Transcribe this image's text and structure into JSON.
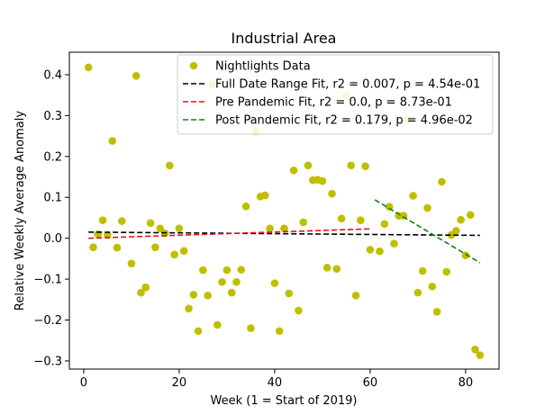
{
  "chart_data": {
    "type": "scatter",
    "title": "Industrial Area",
    "xlabel": "Week (1 = Start of 2019)",
    "ylabel": "Relative Weekly Average Anomaly",
    "xlim": [
      -3,
      87
    ],
    "ylim": [
      -0.32,
      0.455
    ],
    "xticks": [
      0,
      20,
      40,
      60,
      80
    ],
    "yticks": [
      -0.3,
      -0.2,
      -0.1,
      0.0,
      0.1,
      0.2,
      0.3,
      0.4
    ],
    "ytick_labels": [
      "−0.3",
      "−0.2",
      "−0.1",
      "0.0",
      "0.1",
      "0.2",
      "0.3",
      "0.4"
    ],
    "legend_position": "top-right",
    "series": [
      {
        "name": "Nightlights Data",
        "kind": "points",
        "color": "#bfbf00",
        "points": [
          [
            1,
            0.418
          ],
          [
            2,
            -0.022
          ],
          [
            3,
            0.01
          ],
          [
            4,
            0.044
          ],
          [
            5,
            0.008
          ],
          [
            6,
            0.238
          ],
          [
            7,
            -0.023
          ],
          [
            8,
            0.042
          ],
          [
            10,
            -0.062
          ],
          [
            11,
            0.397
          ],
          [
            12,
            -0.133
          ],
          [
            13,
            -0.12
          ],
          [
            14,
            0.037
          ],
          [
            15,
            -0.022
          ],
          [
            16,
            0.024
          ],
          [
            17,
            0.012
          ],
          [
            18,
            0.178
          ],
          [
            19,
            -0.04
          ],
          [
            20,
            0.024
          ],
          [
            21,
            -0.031
          ],
          [
            22,
            -0.172
          ],
          [
            23,
            -0.138
          ],
          [
            24,
            -0.227
          ],
          [
            25,
            -0.078
          ],
          [
            26,
            -0.14
          ],
          [
            27,
            0.375
          ],
          [
            28,
            -0.212
          ],
          [
            29,
            -0.107
          ],
          [
            30,
            -0.078
          ],
          [
            31,
            -0.133
          ],
          [
            32,
            -0.107
          ],
          [
            33,
            -0.077
          ],
          [
            34,
            0.078
          ],
          [
            35,
            -0.22
          ],
          [
            36,
            0.262
          ],
          [
            37,
            0.102
          ],
          [
            38,
            0.105
          ],
          [
            39,
            0.024
          ],
          [
            40,
            -0.11
          ],
          [
            41,
            -0.227
          ],
          [
            42,
            0.024
          ],
          [
            43,
            -0.135
          ],
          [
            44,
            0.166
          ],
          [
            45,
            -0.177
          ],
          [
            46,
            0.039
          ],
          [
            47,
            0.178
          ],
          [
            48,
            0.142
          ],
          [
            49,
            0.143
          ],
          [
            50,
            0.14
          ],
          [
            51,
            -0.072
          ],
          [
            52,
            0.109
          ],
          [
            53,
            -0.075
          ],
          [
            54,
            0.048
          ],
          [
            55,
            0.349
          ],
          [
            56,
            0.178
          ],
          [
            57,
            -0.14
          ],
          [
            58,
            0.044
          ],
          [
            59,
            0.176
          ],
          [
            60,
            -0.028
          ],
          [
            62,
            -0.032
          ],
          [
            63,
            0.035
          ],
          [
            64,
            0.077
          ],
          [
            65,
            -0.013
          ],
          [
            66,
            0.055
          ],
          [
            67,
            0.055
          ],
          [
            68,
            0.29
          ],
          [
            69,
            0.104
          ],
          [
            70,
            -0.133
          ],
          [
            71,
            -0.08
          ],
          [
            72,
            0.074
          ],
          [
            73,
            -0.118
          ],
          [
            74,
            -0.18
          ],
          [
            75,
            0.138
          ],
          [
            76,
            -0.082
          ],
          [
            77,
            0.008
          ],
          [
            78,
            0.018
          ],
          [
            79,
            0.045
          ],
          [
            80,
            -0.042
          ],
          [
            81,
            0.057
          ],
          [
            82,
            -0.272
          ],
          [
            83,
            -0.286
          ]
        ]
      },
      {
        "name": "Full Date Range Fit, r2 = 0.007, p = 4.54e-01",
        "kind": "line",
        "color": "#000000",
        "x": [
          1,
          83
        ],
        "y": [
          0.015,
          0.007
        ]
      },
      {
        "name": "Pre Pandemic Fit, r2 = 0.0, p = 8.73e-01",
        "kind": "line",
        "color": "#e8101a",
        "x": [
          1,
          60
        ],
        "y": [
          0.0,
          0.023
        ]
      },
      {
        "name": "Post Pandemic Fit, r2 = 0.179, p = 4.96e-02",
        "kind": "line",
        "color": "#108010",
        "x": [
          61,
          83
        ],
        "y": [
          0.094,
          -0.06
        ]
      }
    ]
  }
}
